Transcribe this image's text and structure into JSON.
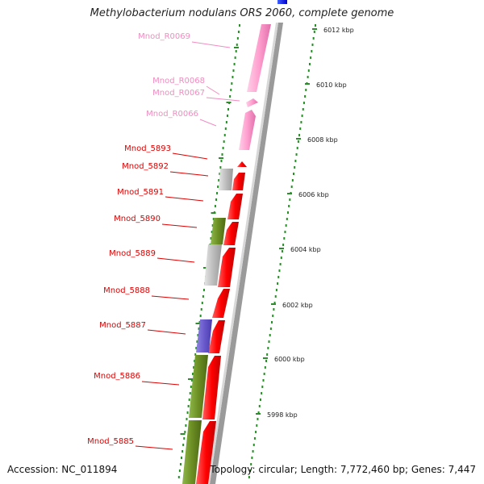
{
  "title": "Methylobacterium nodulans ORS 2060, complete genome",
  "accession": "Accession: NC_011894",
  "topology": "Topology: circular; Length: 7,772,460 bp; Genes: 7,447",
  "colors": {
    "rna_label": "#f08cc0",
    "gene_label": "#dd0000",
    "rna_feature": "#ff9fcf",
    "cds_red": "#ff0000",
    "grey_block": "#bdbdbd",
    "olive_block": "#6b8e23",
    "purple_block": "#6a5acd",
    "tick_green": "#2e8b2e",
    "backbone": "#9a9a9a"
  },
  "scale_labels": [
    "6012 kbp",
    "6010 kbp",
    "6008 kbp",
    "6006 kbp",
    "6004 kbp",
    "6002 kbp",
    "6000 kbp",
    "5998 kbp"
  ],
  "gene_labels": [
    {
      "text": "Mnod_R0069",
      "kind": "rna"
    },
    {
      "text": "Mnod_R0068",
      "kind": "rna"
    },
    {
      "text": "Mnod_R0067",
      "kind": "rna"
    },
    {
      "text": "Mnod_R0066",
      "kind": "rna"
    },
    {
      "text": "Mnod_5893",
      "kind": "cds"
    },
    {
      "text": "Mnod_5892",
      "kind": "cds"
    },
    {
      "text": "Mnod_5891",
      "kind": "cds"
    },
    {
      "text": "Mnod_5890",
      "kind": "cds"
    },
    {
      "text": "Mnod_5889",
      "kind": "cds"
    },
    {
      "text": "Mnod_5888",
      "kind": "cds"
    },
    {
      "text": "Mnod_5887",
      "kind": "cds"
    },
    {
      "text": "Mnod_5886",
      "kind": "cds"
    },
    {
      "text": "Mnod_5885",
      "kind": "cds"
    }
  ]
}
